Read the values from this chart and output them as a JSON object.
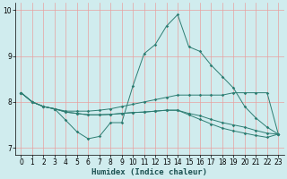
{
  "xlabel": "Humidex (Indice chaleur)",
  "background_color": "#d0ecee",
  "line_color": "#2d7d72",
  "grid_color_v": "#e8a0a0",
  "grid_color_h": "#c8d8d8",
  "xlim": [
    -0.5,
    23.5
  ],
  "ylim": [
    6.85,
    10.15
  ],
  "yticks": [
    7,
    8,
    9,
    10
  ],
  "xticks": [
    0,
    1,
    2,
    3,
    4,
    5,
    6,
    7,
    8,
    9,
    10,
    11,
    12,
    13,
    14,
    15,
    16,
    17,
    18,
    19,
    20,
    21,
    22,
    23
  ],
  "series": [
    [
      8.2,
      8.0,
      7.9,
      7.85,
      7.6,
      7.35,
      7.2,
      7.25,
      7.55,
      7.55,
      8.35,
      9.05,
      9.25,
      9.65,
      9.9,
      9.2,
      9.1,
      8.8,
      8.55,
      8.3,
      7.9,
      7.65,
      7.45,
      7.3
    ],
    [
      8.2,
      8.0,
      7.9,
      7.85,
      7.8,
      7.8,
      7.8,
      7.82,
      7.85,
      7.9,
      7.95,
      8.0,
      8.05,
      8.1,
      8.15,
      8.15,
      8.15,
      8.15,
      8.15,
      8.2,
      8.2,
      8.2,
      8.2,
      7.3
    ],
    [
      8.2,
      8.0,
      7.9,
      7.85,
      7.78,
      7.75,
      7.72,
      7.72,
      7.73,
      7.75,
      7.77,
      7.78,
      7.8,
      7.82,
      7.82,
      7.75,
      7.7,
      7.62,
      7.55,
      7.5,
      7.45,
      7.38,
      7.32,
      7.3
    ],
    [
      8.2,
      8.0,
      7.9,
      7.85,
      7.78,
      7.75,
      7.72,
      7.72,
      7.73,
      7.75,
      7.77,
      7.78,
      7.8,
      7.82,
      7.82,
      7.72,
      7.62,
      7.52,
      7.43,
      7.37,
      7.32,
      7.27,
      7.23,
      7.3
    ]
  ]
}
